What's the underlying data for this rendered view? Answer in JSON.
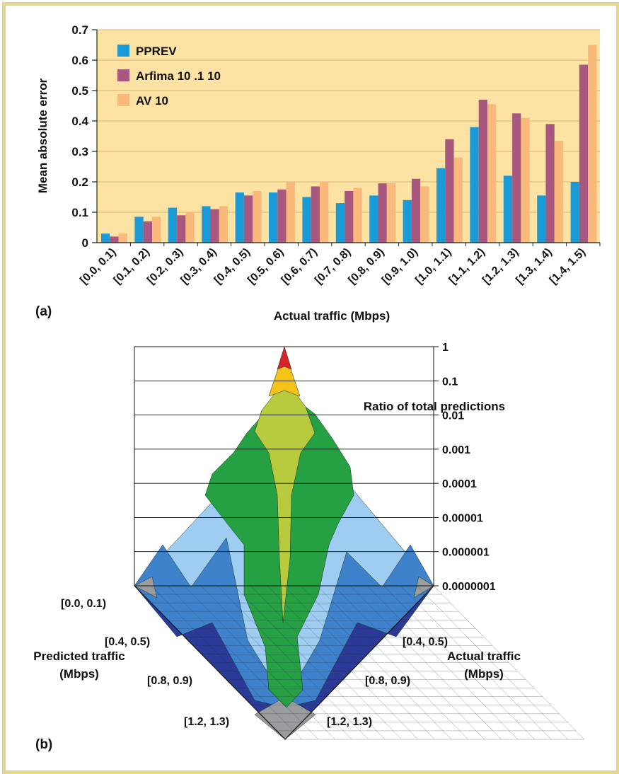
{
  "panel_a_label": "(a)",
  "panel_b_label": "(b)",
  "colors": {
    "frame": "#e6d58f",
    "plot_bg": "#fde3a3",
    "pprev": "#1a9ad6",
    "arfima": "#a8577e",
    "av": "#f9b97b",
    "surface_peak": "#d8232a",
    "surface_yellow": "#f5c21a",
    "surface_olive": "#b8ca3e",
    "surface_green": "#25a043",
    "surface_lightblue": "#9ecdf1",
    "surface_midblue": "#3f82cc",
    "surface_navy": "#2b3a98",
    "surface_gray": "#9a9c9e"
  },
  "chart_data": [
    {
      "type": "bar",
      "ylabel": "Mean absolute error",
      "xlabel": "Actual traffic (Mbps)",
      "ylim": [
        0,
        0.7
      ],
      "yticks": [
        "0",
        "0.1",
        "0.2",
        "0.3",
        "0.4",
        "0.5",
        "0.6",
        "0.7"
      ],
      "grid": true,
      "legend_position": "top-left",
      "categories": [
        "[0.0, 0.1)",
        "[0.1, 0.2)",
        "[0.2, 0.3)",
        "[0.3, 0.4)",
        "[0.4, 0.5)",
        "[0.5, 0.6)",
        "[0.6, 0.7)",
        "[0.7, 0.8)",
        "[0.8, 0.9)",
        "[0.9, 1.0)",
        "[1.0, 1.1)",
        "[1.1, 1.2)",
        "[1.2, 1.3)",
        "[1.3, 1.4)",
        "[1.4, 1.5)"
      ],
      "series": [
        {
          "name": "PPREV",
          "values": [
            0.03,
            0.085,
            0.115,
            0.12,
            0.165,
            0.165,
            0.15,
            0.13,
            0.155,
            0.14,
            0.245,
            0.38,
            0.22,
            0.155,
            0.2
          ]
        },
        {
          "name": "Arfima 10 .1 10",
          "values": [
            0.02,
            0.07,
            0.09,
            0.11,
            0.155,
            0.175,
            0.185,
            0.17,
            0.195,
            0.21,
            0.34,
            0.47,
            0.425,
            0.39,
            0.585
          ]
        },
        {
          "name": "AV 10",
          "values": [
            0.03,
            0.085,
            0.1,
            0.12,
            0.17,
            0.2,
            0.2,
            0.18,
            0.195,
            0.185,
            0.28,
            0.455,
            0.41,
            0.335,
            0.65
          ]
        }
      ]
    },
    {
      "type": "surface",
      "title": "Ratio of total predictions",
      "zlabel_ticks": [
        "1",
        "0.1",
        "0.01",
        "0.001",
        "0.0001",
        "0.00001",
        "0.000001",
        "0.0000001"
      ],
      "left_axis": {
        "label_line1": "Predicted traffic",
        "label_line2": "(Mbps)",
        "ticks": [
          "[0.0, 0.1)",
          "[0.4, 0.5)",
          "[0.8, 0.9)",
          "[1.2, 1.3)"
        ]
      },
      "right_axis": {
        "label_line1": "Actual traffic",
        "label_line2": "(Mbps)",
        "ticks": [
          "[0.4, 0.5)",
          "[0.8, 0.9)",
          "[1.2, 1.3)"
        ]
      }
    }
  ]
}
